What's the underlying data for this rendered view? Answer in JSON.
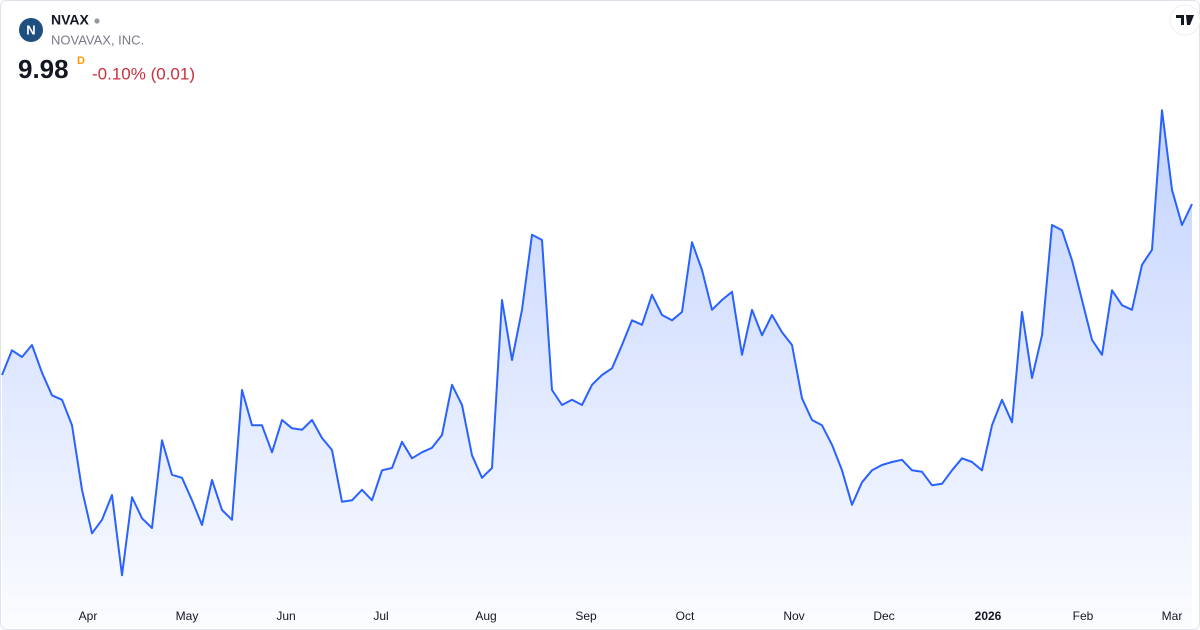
{
  "header": {
    "symbol": "NVAX",
    "name": "NOVAVAX, INC.",
    "price": "9.98",
    "interval": "D",
    "change": "-0.10% (0.01)"
  },
  "chart_data": {
    "type": "area",
    "color": "#2962ff",
    "values": [
      7.7,
      8.03,
      7.94,
      8.1,
      7.73,
      7.43,
      7.37,
      7.03,
      6.17,
      5.59,
      5.77,
      6.1,
      5.03,
      6.07,
      5.79,
      5.66,
      6.83,
      6.37,
      6.33,
      6.03,
      5.7,
      6.3,
      5.9,
      5.77,
      7.5,
      7.03,
      7.03,
      6.67,
      7.1,
      6.99,
      6.97,
      7.1,
      6.86,
      6.7,
      6.01,
      6.03,
      6.17,
      6.03,
      6.43,
      6.46,
      6.81,
      6.59,
      6.67,
      6.73,
      6.9,
      7.57,
      7.3,
      6.63,
      6.33,
      6.46,
      8.7,
      7.9,
      8.57,
      9.57,
      9.5,
      7.5,
      7.3,
      7.37,
      7.3,
      7.57,
      7.7,
      7.79,
      8.1,
      8.43,
      8.37,
      8.77,
      8.5,
      8.43,
      8.54,
      9.47,
      9.1,
      8.57,
      8.7,
      8.81,
      7.97,
      8.57,
      8.23,
      8.5,
      8.27,
      8.1,
      7.39,
      7.1,
      7.03,
      6.77,
      6.43,
      5.97,
      6.27,
      6.43,
      6.5,
      6.54,
      6.57,
      6.43,
      6.41,
      6.23,
      6.25,
      6.43,
      6.59,
      6.54,
      6.43,
      7.03,
      7.37,
      7.07,
      8.54,
      7.66,
      8.23,
      9.7,
      9.63,
      9.23,
      8.7,
      8.17,
      7.97,
      8.83,
      8.63,
      8.57,
      9.17,
      9.37,
      11.23,
      10.17,
      9.7,
      9.98
    ],
    "xlim": [
      0,
      119
    ],
    "xticks": [
      {
        "value": 8.6,
        "label": "Apr"
      },
      {
        "value": 18.5,
        "label": "May"
      },
      {
        "value": 28.4,
        "label": "Jun"
      },
      {
        "value": 37.9,
        "label": "Jul"
      },
      {
        "value": 48.4,
        "label": "Aug"
      },
      {
        "value": 58.4,
        "label": "Sep"
      },
      {
        "value": 68.3,
        "label": "Oct"
      },
      {
        "value": 79.2,
        "label": "Nov"
      },
      {
        "value": 88.2,
        "label": "Dec"
      },
      {
        "value": 98.6,
        "label": "2026"
      },
      {
        "value": 108.1,
        "label": "Feb"
      },
      {
        "value": 117,
        "label": "Mar"
      }
    ],
    "ylim": [
      4.7,
      11.5
    ]
  }
}
